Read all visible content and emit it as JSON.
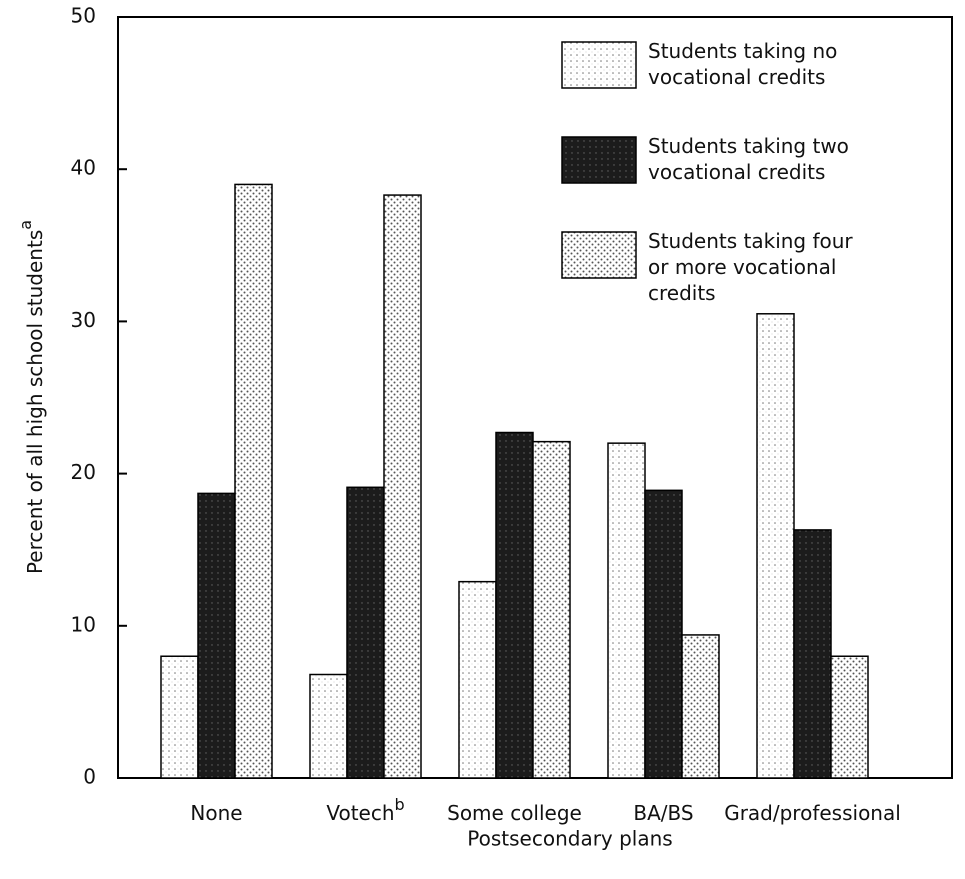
{
  "chart_data": {
    "type": "bar",
    "ylabel": "Percent of all high school students",
    "ylabel_superscript": "a",
    "xlabel": "Postsecondary plans",
    "categories": [
      "None",
      "Votech",
      "Some college",
      "BA/BS",
      "Grad/professional"
    ],
    "category_superscripts": [
      null,
      "b",
      null,
      null,
      null
    ],
    "series": [
      {
        "name": "Students taking no vocational credits",
        "color": "#d9d9d9",
        "values": [
          8,
          6.8,
          12.9,
          22,
          30.5
        ]
      },
      {
        "name": "Students taking two vocational credits",
        "color": "#1c1c1c",
        "values": [
          18.7,
          19.1,
          22.7,
          18.9,
          16.3
        ]
      },
      {
        "name": "Students taking four or more vocational credits",
        "color": "#c4c4c4",
        "values": [
          39,
          38.3,
          22.1,
          9.4,
          8
        ]
      }
    ],
    "ylim": [
      0,
      50
    ],
    "yticks": [
      0,
      10,
      20,
      30,
      40,
      50
    ],
    "legend": "top-right"
  }
}
